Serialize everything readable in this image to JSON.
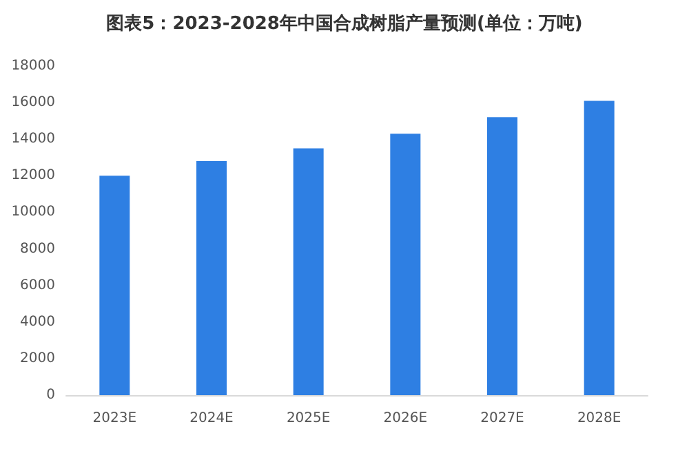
{
  "chart_data": {
    "type": "bar",
    "title": "图表5：2023-2028年中国合成树脂产量预测(单位：万吨)",
    "categories": [
      "2023E",
      "2024E",
      "2025E",
      "2026E",
      "2027E",
      "2028E"
    ],
    "series": [
      {
        "color": "#2e7fe3",
        "values": [
          12000,
          12800,
          13500,
          14300,
          15200,
          16100
        ]
      }
    ],
    "ylim": [
      0,
      18000
    ],
    "yticks": [
      0,
      2000,
      4000,
      6000,
      8000,
      10000,
      12000,
      14000,
      16000,
      18000
    ]
  }
}
